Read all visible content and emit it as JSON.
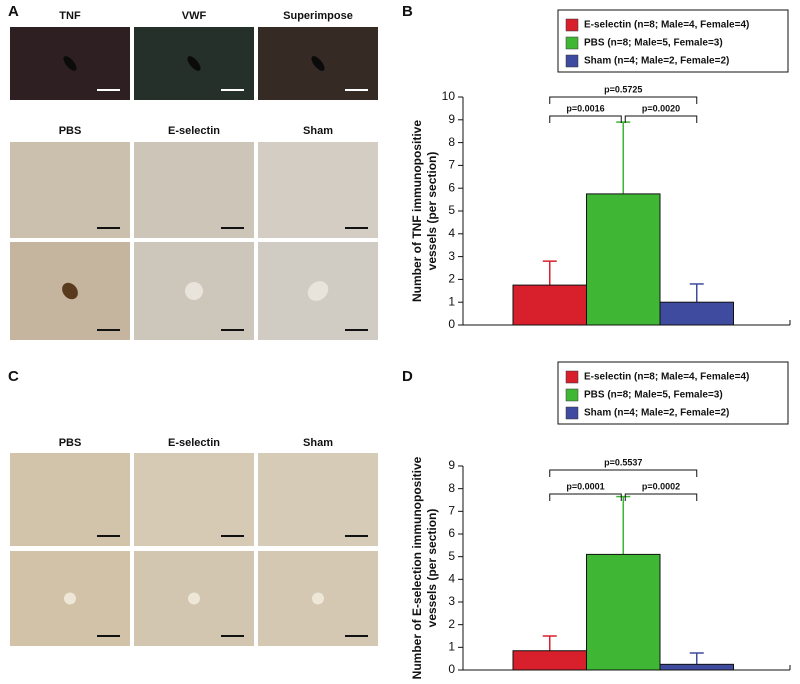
{
  "figure": {
    "panel_letters": [
      "A",
      "B",
      "C",
      "D"
    ],
    "panel_a_labels": [
      "TNF",
      "VWF",
      "Superimpose",
      "PBS",
      "E-selectin",
      "Sham"
    ],
    "panel_c_labels": [
      "PBS",
      "E-selectin",
      "Sham"
    ]
  },
  "chart_data": [
    {
      "type": "bar",
      "ylabel": [
        "Number of TNF immunopositive",
        "vessels (per section)"
      ],
      "ylim": [
        0,
        10
      ],
      "yticks": [
        0,
        1,
        2,
        3,
        4,
        5,
        6,
        7,
        8,
        9,
        10
      ],
      "series": [
        {
          "name": "E-selectin (n=8; Male=4, Female=4)",
          "color": "#d7202c",
          "values": [
            1.75
          ],
          "errors": [
            1.05
          ]
        },
        {
          "name": "PBS (n=8; Male=5, Female=3)",
          "color": "#3fb734",
          "values": [
            5.75
          ],
          "errors": [
            3.15
          ]
        },
        {
          "name": "Sham (n=4; Male=2, Female=2)",
          "color": "#3f4b9e",
          "values": [
            1.0
          ],
          "errors": [
            0.8
          ]
        }
      ],
      "annotations": [
        "p=0.0016",
        "p=0.0020",
        "p=0.5725"
      ]
    },
    {
      "type": "bar",
      "ylabel": [
        "Number of E-selection immunopositive",
        "vessels (per section)"
      ],
      "ylim": [
        0,
        9
      ],
      "yticks": [
        0,
        1,
        2,
        3,
        4,
        5,
        6,
        7,
        8,
        9
      ],
      "series": [
        {
          "name": "E-selectin (n=8; Male=4, Female=4)",
          "color": "#d7202c",
          "values": [
            0.85
          ],
          "errors": [
            0.65
          ]
        },
        {
          "name": "PBS (n=8; Male=5, Female=3)",
          "color": "#3fb734",
          "values": [
            5.1
          ],
          "errors": [
            2.55
          ]
        },
        {
          "name": "Sham (n=4; Male=2, Female=2)",
          "color": "#3f4b9e",
          "values": [
            0.25
          ],
          "errors": [
            0.5
          ]
        }
      ],
      "annotations": [
        "p=0.0001",
        "p=0.0002",
        "p=0.5537"
      ]
    }
  ]
}
